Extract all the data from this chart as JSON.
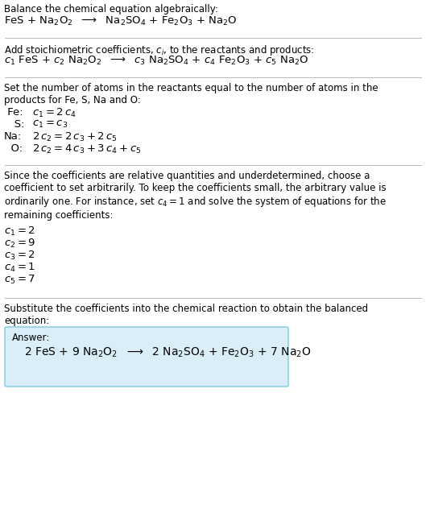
{
  "bg_color": "#ffffff",
  "text_color": "#000000",
  "divider_color": "#bbbbbb",
  "answer_box_color": "#daeef8",
  "answer_box_border": "#7ec8e3",
  "section1_title": "Balance the chemical equation algebraically:",
  "section1_eq": "FeS + Na$_2$O$_2$  $\\longrightarrow$  Na$_2$SO$_4$ + Fe$_2$O$_3$ + Na$_2$O",
  "section2_title": "Add stoichiometric coefficients, $c_i$, to the reactants and products:",
  "section2_eq": "$c_1$ FeS + $c_2$ Na$_2$O$_2$  $\\longrightarrow$  $c_3$ Na$_2$SO$_4$ + $c_4$ Fe$_2$O$_3$ + $c_5$ Na$_2$O",
  "section3_title": "Set the number of atoms in the reactants equal to the number of atoms in the\nproducts for Fe, S, Na and O:",
  "section3_lines": [
    " Fe:  $c_1 = 2\\,c_4$",
    "   S:  $c_1 = c_3$",
    "Na:  $2\\,c_2 = 2\\,c_3 + 2\\,c_5$",
    "  O:  $2\\,c_2 = 4\\,c_3 + 3\\,c_4 + c_5$"
  ],
  "section4_title": "Since the coefficients are relative quantities and underdetermined, choose a\ncoefficient to set arbitrarily. To keep the coefficients small, the arbitrary value is\nordinarily one. For instance, set $c_4 = 1$ and solve the system of equations for the\nremaining coefficients:",
  "section4_lines": [
    "$c_1 = 2$",
    "$c_2 = 9$",
    "$c_3 = 2$",
    "$c_4 = 1$",
    "$c_5 = 7$"
  ],
  "section5_title": "Substitute the coefficients into the chemical reaction to obtain the balanced\nequation:",
  "answer_label": "Answer:",
  "answer_eq": "2 FeS + 9 Na$_2$O$_2$  $\\longrightarrow$  2 Na$_2$SO$_4$ + Fe$_2$O$_3$ + 7 Na$_2$O",
  "fs_body": 8.5,
  "fs_eq": 9.5,
  "fs_answer": 10.0
}
